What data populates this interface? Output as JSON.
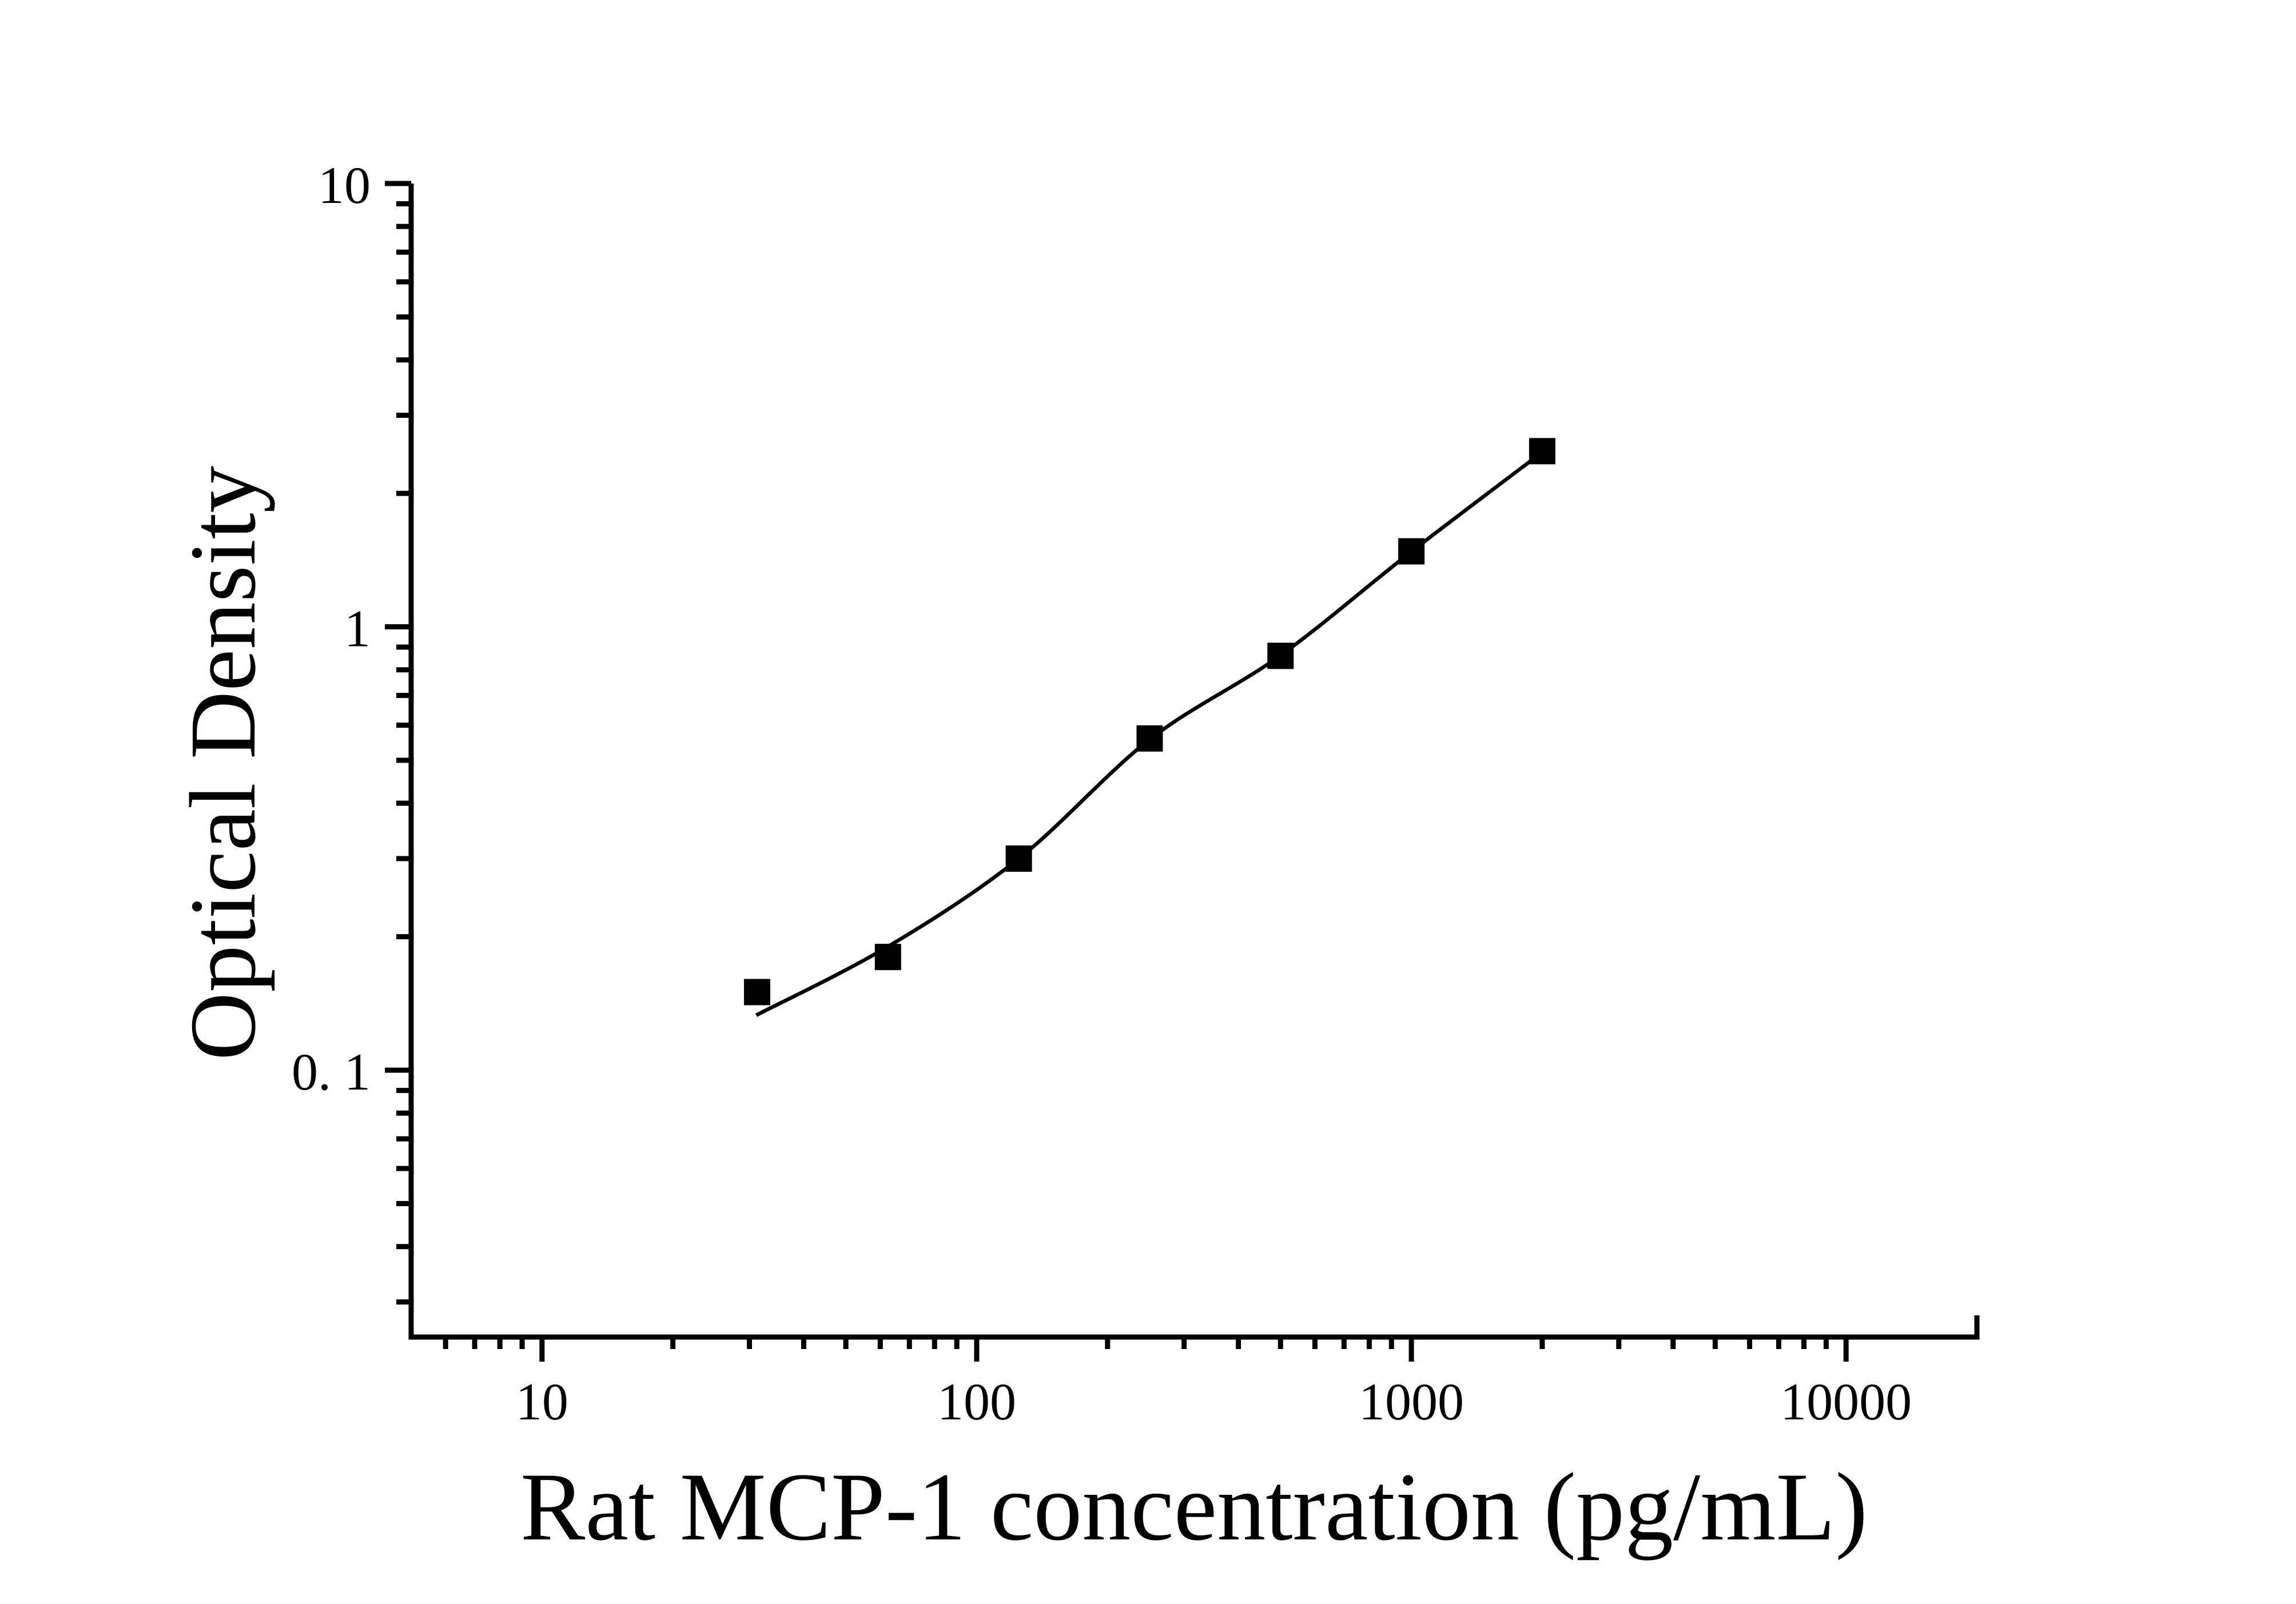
{
  "figure": {
    "background": "#ffffff",
    "ink_color": "#000000"
  },
  "chart_data": {
    "type": "scatter",
    "title": "",
    "xlabel": "Rat MCP-1 concentration (pg/mL)",
    "ylabel": "Optical Density",
    "x_scale": "log",
    "y_scale": "log",
    "xlim": [
      5,
      20000
    ],
    "ylim": [
      0.025,
      10
    ],
    "grid": false,
    "legend": null,
    "marker": "filled-square",
    "marker_color": "#000000",
    "line_color": "#000000",
    "x_major_ticks": [
      {
        "value": 10,
        "label": "10"
      },
      {
        "value": 100,
        "label": "100"
      },
      {
        "value": 1000,
        "label": "1000"
      },
      {
        "value": 10000,
        "label": "10000"
      }
    ],
    "y_major_ticks": [
      {
        "value": 0.1,
        "label": "0. 1"
      },
      {
        "value": 1,
        "label": "1"
      },
      {
        "value": 10,
        "label": "10"
      }
    ],
    "points": [
      {
        "concentration_pg_ml": 31.25,
        "od": 0.15
      },
      {
        "concentration_pg_ml": 62.5,
        "od": 0.18
      },
      {
        "concentration_pg_ml": 125,
        "od": 0.3
      },
      {
        "concentration_pg_ml": 250,
        "od": 0.56
      },
      {
        "concentration_pg_ml": 500,
        "od": 0.86
      },
      {
        "concentration_pg_ml": 1000,
        "od": 1.48
      },
      {
        "concentration_pg_ml": 2000,
        "od": 2.49
      }
    ],
    "fit_curve": [
      [
        31.1,
        0.133
      ],
      [
        62.5,
        0.19
      ],
      [
        125,
        0.3
      ],
      [
        250,
        0.557
      ],
      [
        500,
        0.862
      ],
      [
        1000,
        1.478
      ],
      [
        2020,
        2.495
      ]
    ]
  }
}
